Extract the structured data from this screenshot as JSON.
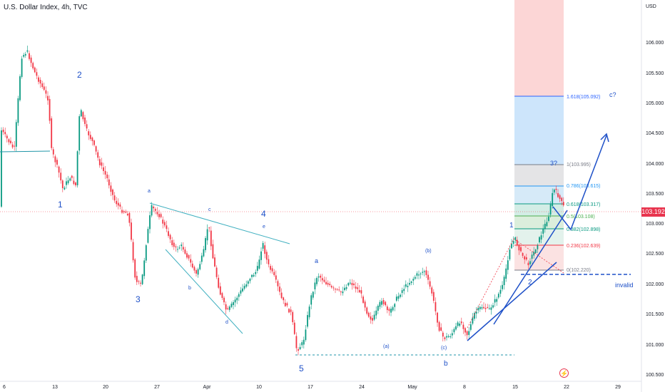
{
  "header": {
    "title": "U.S. Dollar Index, 4h, TVC"
  },
  "price_axis": {
    "currency": "USD",
    "labels": [
      "106.000",
      "105.500",
      "105.000",
      "104.500",
      "104.000",
      "103.500",
      "103.000",
      "102.500",
      "102.000",
      "101.500",
      "101.000",
      "100.500"
    ],
    "last_price": "103.192",
    "last_price_color": "#e8344e"
  },
  "time_axis": {
    "labels": [
      "6",
      "13",
      "20",
      "27",
      "Apr",
      "10",
      "17",
      "24",
      "May",
      "8",
      "15",
      "22",
      "29"
    ]
  },
  "annotations": {
    "waves": [
      "1",
      "2",
      "3",
      "4",
      "5"
    ],
    "sub_waves": [
      "a",
      "b",
      "c",
      "d",
      "e"
    ],
    "corrective": [
      "a",
      "(a)",
      "(b)",
      "(c)",
      "b"
    ],
    "new_impulse": [
      "1",
      "2",
      "3?",
      "c?"
    ],
    "invalid_label": "invalid"
  },
  "fibonacci": [
    {
      "label": "1.618(105.092)",
      "color": "#2962ff"
    },
    {
      "label": "1(103.995)",
      "color": "#787b86"
    },
    {
      "label": "0.786(103.615)",
      "color": "#2196f3"
    },
    {
      "label": "0.618(103.317)",
      "color": "#089981"
    },
    {
      "label": "0.5(103.108)",
      "color": "#4caf50"
    },
    {
      "label": "0.382(102.898)",
      "color": "#089981"
    },
    {
      "label": "0.236(102.639)",
      "color": "#f23645"
    },
    {
      "label": "0(102.220)",
      "color": "#787b86"
    }
  ],
  "colors": {
    "up": "#089981",
    "down": "#f23645",
    "wave": "#1e50c8"
  }
}
